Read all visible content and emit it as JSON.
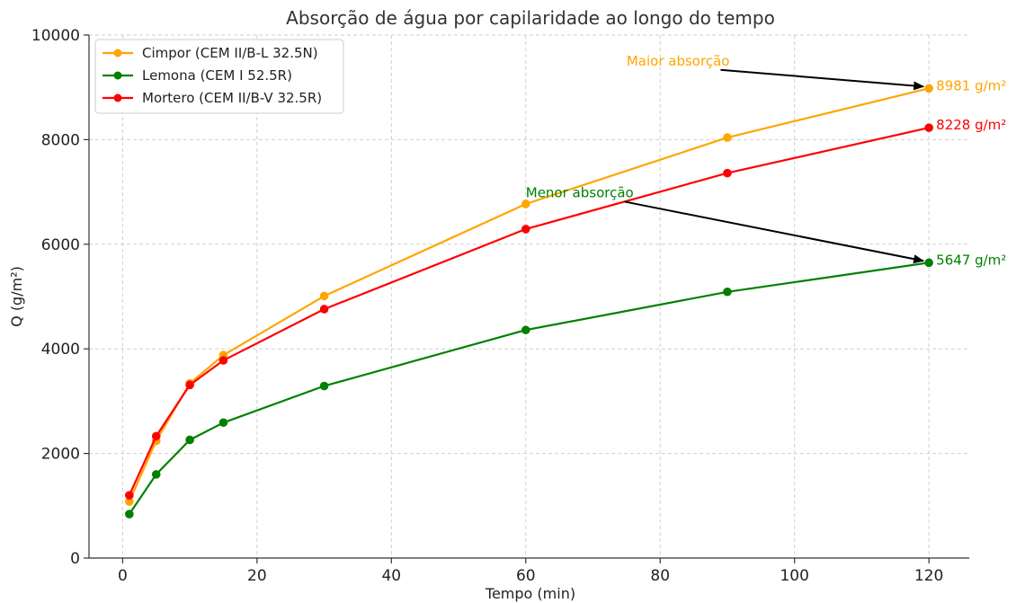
{
  "chart_data": {
    "type": "line",
    "title": "Absorção de água por capilaridade ao longo do tempo",
    "xlabel": "Tempo (min)",
    "ylabel": "Q (g/m²)",
    "xlim": [
      -5,
      126
    ],
    "ylim": [
      0,
      10000
    ],
    "x_ticks": [
      0,
      20,
      40,
      60,
      80,
      100,
      120
    ],
    "y_ticks": [
      0,
      2000,
      4000,
      6000,
      8000,
      10000
    ],
    "grid": true,
    "legend_position": "top-left",
    "x": [
      1,
      5,
      10,
      15,
      30,
      60,
      90,
      120
    ],
    "series": [
      {
        "name": "Cimpor (CEM II/B-L 32.5N)",
        "color": "#FFA500",
        "values": [
          1080,
          2240,
          3340,
          3880,
          5010,
          6770,
          8040,
          8981
        ]
      },
      {
        "name": "Lemona (CEM I 52.5R)",
        "color": "#008000",
        "values": [
          840,
          1600,
          2260,
          2590,
          3290,
          4360,
          5090,
          5647
        ]
      },
      {
        "name": "Mortero (CEM II/B-V 32.5R)",
        "color": "#FF0000",
        "values": [
          1200,
          2330,
          3310,
          3780,
          4760,
          6290,
          7360,
          8228
        ]
      }
    ],
    "end_labels": [
      {
        "series": 0,
        "text": "8981 g/m²",
        "color": "#FFA500"
      },
      {
        "series": 2,
        "text": "8228 g/m²",
        "color": "#FF0000"
      },
      {
        "series": 1,
        "text": "5647 g/m²",
        "color": "#008000"
      }
    ],
    "annotations": [
      {
        "text": "Maior absorção",
        "color": "#FFA500",
        "text_x": 75,
        "text_y": 9420,
        "target_x": 120,
        "target_y": 8981
      },
      {
        "text": "Menor absorção",
        "color": "#008000",
        "text_x": 60,
        "text_y": 6900,
        "target_x": 120,
        "target_y": 5647
      }
    ]
  }
}
